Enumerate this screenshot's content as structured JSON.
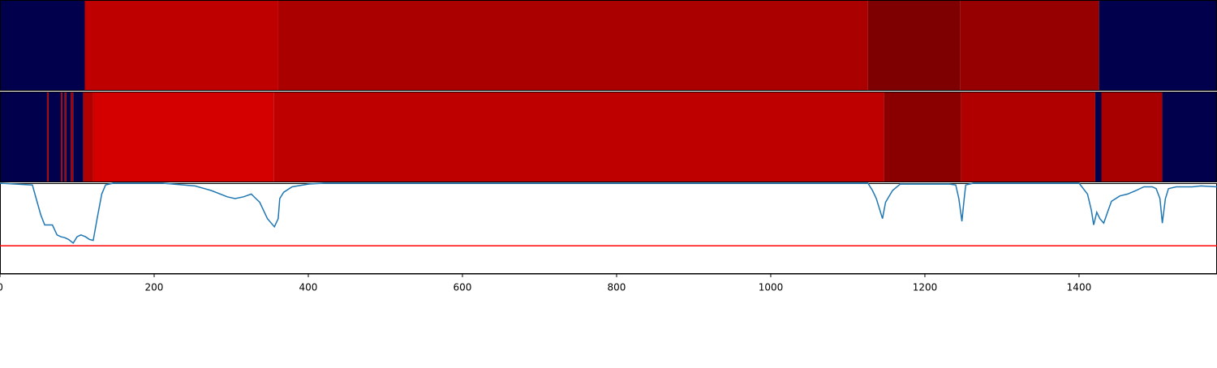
{
  "chart_data": {
    "type": "line",
    "xlim": [
      0,
      1579
    ],
    "ylim": [
      0,
      1
    ],
    "xticks": [
      0,
      200,
      400,
      600,
      800,
      1000,
      1200,
      1400
    ],
    "strips": [
      {
        "segments": [
          {
            "start": 0,
            "end": 110,
            "color": "#00004c"
          },
          {
            "start": 110,
            "end": 361,
            "color": "#bf0000"
          },
          {
            "start": 361,
            "end": 1126,
            "color": "#aa0000"
          },
          {
            "start": 1126,
            "end": 1246,
            "color": "#7f0000"
          },
          {
            "start": 1246,
            "end": 1426,
            "color": "#960000"
          },
          {
            "start": 1426,
            "end": 1579,
            "color": "#00004c"
          }
        ]
      },
      {
        "segments": [
          {
            "start": 0,
            "end": 61,
            "color": "#00004c"
          },
          {
            "start": 61,
            "end": 63,
            "color": "#aa0000"
          },
          {
            "start": 63,
            "end": 79,
            "color": "#00004c"
          },
          {
            "start": 79,
            "end": 81,
            "color": "#aa0000"
          },
          {
            "start": 81,
            "end": 84,
            "color": "#00004c"
          },
          {
            "start": 84,
            "end": 86,
            "color": "#aa0000"
          },
          {
            "start": 86,
            "end": 92,
            "color": "#00004c"
          },
          {
            "start": 92,
            "end": 95,
            "color": "#aa0000"
          },
          {
            "start": 95,
            "end": 108,
            "color": "#00004c"
          },
          {
            "start": 108,
            "end": 121,
            "color": "#b00000"
          },
          {
            "start": 121,
            "end": 355,
            "color": "#d40000"
          },
          {
            "start": 355,
            "end": 1147,
            "color": "#bf0000"
          },
          {
            "start": 1147,
            "end": 1247,
            "color": "#8a0000"
          },
          {
            "start": 1247,
            "end": 1421,
            "color": "#b00000"
          },
          {
            "start": 1421,
            "end": 1429,
            "color": "#00004c"
          },
          {
            "start": 1429,
            "end": 1508,
            "color": "#a80000"
          },
          {
            "start": 1508,
            "end": 1579,
            "color": "#00004c"
          }
        ]
      }
    ],
    "series": [
      {
        "color": "#1f77b4",
        "x": [
          0,
          42,
          47,
          53,
          58,
          63,
          68,
          74,
          79,
          84,
          89,
          95,
          100,
          105,
          111,
          116,
          121,
          126,
          132,
          137,
          147,
          211,
          253,
          274,
          295,
          305,
          316,
          326,
          332,
          337,
          347,
          356,
          361,
          363,
          368,
          379,
          400,
          421,
          737,
          1126,
          1132,
          1137,
          1145,
          1149,
          1158,
          1168,
          1232,
          1240,
          1244,
          1248,
          1251,
          1253,
          1263,
          1400,
          1411,
          1416,
          1419,
          1423,
          1427,
          1432,
          1437,
          1442,
          1453,
          1463,
          1474,
          1484,
          1495,
          1500,
          1505,
          1508,
          1512,
          1516,
          1526,
          1547,
          1558,
          1579
        ],
        "values": [
          1.0,
          0.98,
          0.83,
          0.65,
          0.54,
          0.54,
          0.54,
          0.43,
          0.41,
          0.4,
          0.38,
          0.34,
          0.41,
          0.43,
          0.41,
          0.38,
          0.37,
          0.61,
          0.88,
          0.98,
          1.0,
          1.0,
          0.97,
          0.92,
          0.85,
          0.83,
          0.85,
          0.88,
          0.83,
          0.79,
          0.61,
          0.52,
          0.61,
          0.83,
          0.9,
          0.96,
          0.99,
          1.0,
          1.0,
          1.0,
          0.92,
          0.83,
          0.61,
          0.79,
          0.92,
          0.99,
          0.99,
          0.98,
          0.83,
          0.58,
          0.83,
          0.98,
          1.0,
          1.0,
          0.88,
          0.7,
          0.54,
          0.68,
          0.61,
          0.56,
          0.68,
          0.8,
          0.86,
          0.88,
          0.92,
          0.96,
          0.96,
          0.94,
          0.83,
          0.56,
          0.83,
          0.94,
          0.96,
          0.96,
          0.97,
          0.96
        ]
      }
    ],
    "threshold": {
      "value": 0.31,
      "color": "#ff0000"
    }
  }
}
